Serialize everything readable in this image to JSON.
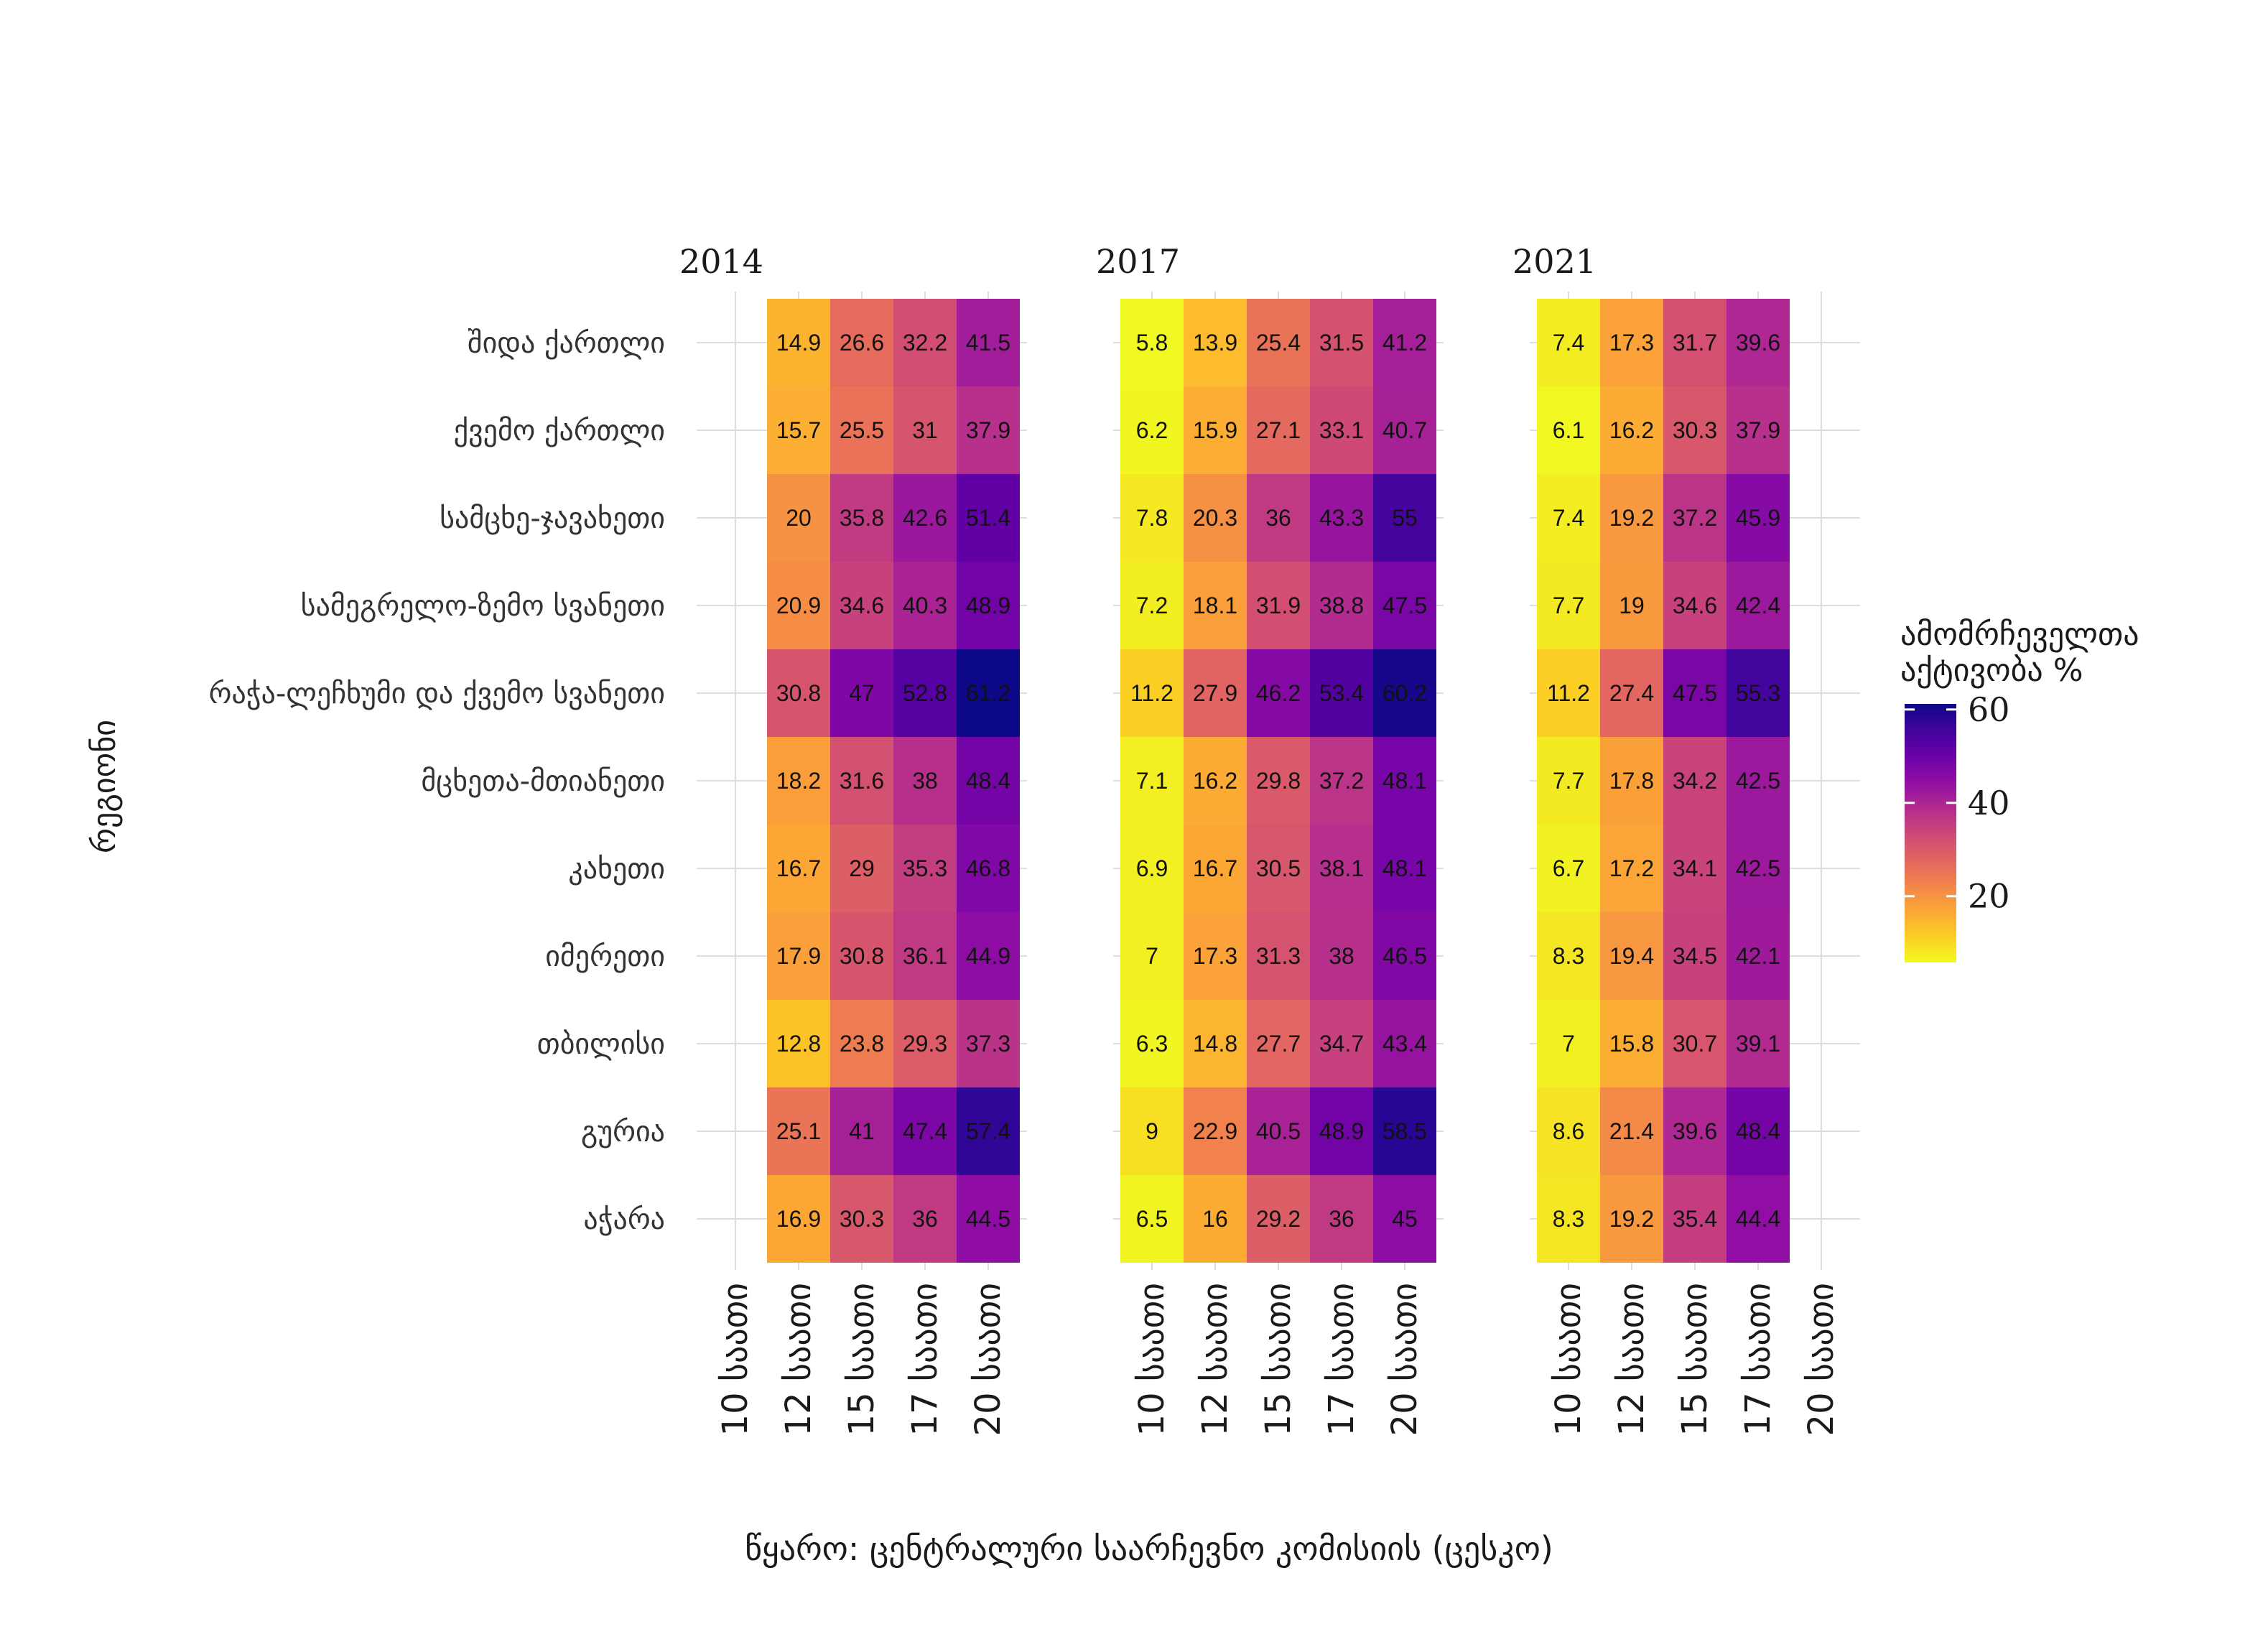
{
  "chart_data": {
    "type": "heatmap",
    "facets": [
      "2014",
      "2017",
      "2021"
    ],
    "rows": [
      "შიდა ქართლი",
      "ქვემო ქართლი",
      "სამცხე-ჯავახეთი",
      "სამეგრელო-ზემო სვანეთი",
      "რაჭა-ლეჩხუმი და ქვემო სვანეთი",
      "მცხეთა-მთიანეთი",
      "კახეთი",
      "იმერეთი",
      "თბილისი",
      "გურია",
      "აჭარა"
    ],
    "columns": [
      "10 საათი",
      "12 საათი",
      "15 საათი",
      "17 საათი",
      "20 საათი"
    ],
    "facet_data": {
      "2014": {
        "columns": [
          "12 საათი",
          "15 საათი",
          "17 საათი",
          "20 საათი"
        ],
        "values": [
          [
            14.9,
            26.6,
            32.2,
            41.5
          ],
          [
            15.7,
            25.5,
            31,
            37.9
          ],
          [
            20,
            35.8,
            42.6,
            51.4
          ],
          [
            20.9,
            34.6,
            40.3,
            48.9
          ],
          [
            30.8,
            47,
            52.8,
            61.2
          ],
          [
            18.2,
            31.6,
            38,
            48.4
          ],
          [
            16.7,
            29,
            35.3,
            46.8
          ],
          [
            17.9,
            30.8,
            36.1,
            44.9
          ],
          [
            12.8,
            23.8,
            29.3,
            37.3
          ],
          [
            25.1,
            41,
            47.4,
            57.4
          ],
          [
            16.9,
            30.3,
            36,
            44.5
          ]
        ]
      },
      "2017": {
        "columns": [
          "10 საათი",
          "12 საათი",
          "15 საათი",
          "17 საათი",
          "20 საათი"
        ],
        "values": [
          [
            5.8,
            13.9,
            25.4,
            31.5,
            41.2
          ],
          [
            6.2,
            15.9,
            27.1,
            33.1,
            40.7
          ],
          [
            7.8,
            20.3,
            36,
            43.3,
            55
          ],
          [
            7.2,
            18.1,
            31.9,
            38.8,
            47.5
          ],
          [
            11.2,
            27.9,
            46.2,
            53.4,
            60.2
          ],
          [
            7.1,
            16.2,
            29.8,
            37.2,
            48.1
          ],
          [
            6.9,
            16.7,
            30.5,
            38.1,
            48.1
          ],
          [
            7,
            17.3,
            31.3,
            38,
            46.5
          ],
          [
            6.3,
            14.8,
            27.7,
            34.7,
            43.4
          ],
          [
            9,
            22.9,
            40.5,
            48.9,
            58.5
          ],
          [
            6.5,
            16,
            29.2,
            36,
            45
          ]
        ]
      },
      "2021": {
        "columns": [
          "10 საათი",
          "12 საათი",
          "15 საათი",
          "17 საათი"
        ],
        "values": [
          [
            7.4,
            17.3,
            31.7,
            39.6
          ],
          [
            6.1,
            16.2,
            30.3,
            37.9
          ],
          [
            7.4,
            19.2,
            37.2,
            45.9
          ],
          [
            7.7,
            19,
            34.6,
            42.4
          ],
          [
            11.2,
            27.4,
            47.5,
            55.3
          ],
          [
            7.7,
            17.8,
            34.2,
            42.5
          ],
          [
            6.7,
            17.2,
            34.1,
            42.5
          ],
          [
            8.3,
            19.4,
            34.5,
            42.1
          ],
          [
            7,
            15.8,
            30.7,
            39.1
          ],
          [
            8.6,
            21.4,
            39.6,
            48.4
          ],
          [
            8.3,
            19.2,
            35.4,
            44.4
          ]
        ]
      }
    },
    "ylabel": "რეგიონი",
    "caption": "წყარო: ცენტრალური საარჩევნო კომისიის (ცესკო)",
    "legend": {
      "title_lines": [
        "ამომრჩეველთა",
        "აქტივობა %"
      ],
      "ticks": [
        20,
        40,
        60
      ],
      "min": 5.8,
      "max": 61.2,
      "palette": "plasma",
      "placement": "right"
    }
  }
}
